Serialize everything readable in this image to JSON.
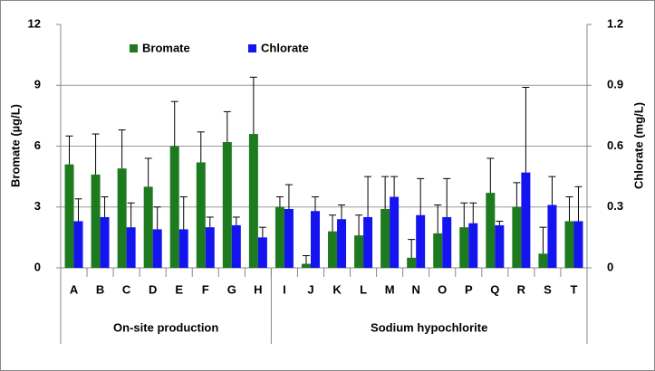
{
  "chart_data": {
    "type": "bar",
    "categories": [
      "A",
      "B",
      "C",
      "D",
      "E",
      "F",
      "G",
      "H",
      "I",
      "J",
      "K",
      "L",
      "M",
      "N",
      "O",
      "P",
      "Q",
      "R",
      "S",
      "T"
    ],
    "groups": [
      {
        "name": "On-site production",
        "categories": [
          "A",
          "B",
          "C",
          "D",
          "E",
          "F",
          "G",
          "H"
        ]
      },
      {
        "name": "Sodium hypochlorite",
        "categories": [
          "I",
          "J",
          "K",
          "L",
          "M",
          "N",
          "O",
          "P",
          "Q",
          "R",
          "S",
          "T"
        ]
      }
    ],
    "series": [
      {
        "name": "Bromate",
        "color": "#1e7a1e",
        "values": [
          5.1,
          4.6,
          4.9,
          4.0,
          6.0,
          5.2,
          6.2,
          6.6,
          3.0,
          0.2,
          1.8,
          1.6,
          2.9,
          0.5,
          1.7,
          2.0,
          3.7,
          3.0,
          0.7,
          2.3
        ],
        "errors": [
          1.4,
          2.0,
          1.9,
          1.4,
          2.2,
          1.5,
          1.5,
          2.8,
          0.5,
          0.4,
          0.8,
          1.0,
          1.6,
          0.9,
          1.4,
          1.2,
          1.7,
          1.2,
          1.3,
          1.2
        ]
      },
      {
        "name": "Chlorate",
        "color": "#1414f0",
        "axis": "y2",
        "values": [
          0.23,
          0.25,
          0.2,
          0.19,
          0.19,
          0.2,
          0.21,
          0.15,
          0.29,
          0.28,
          0.24,
          0.25,
          0.35,
          0.26,
          0.25,
          0.22,
          0.21,
          0.47,
          0.31,
          0.23
        ],
        "errors": [
          0.11,
          0.1,
          0.12,
          0.11,
          0.16,
          0.05,
          0.04,
          0.05,
          0.12,
          0.07,
          0.07,
          0.2,
          0.1,
          0.18,
          0.19,
          0.1,
          0.02,
          0.42,
          0.14,
          0.17
        ]
      }
    ],
    "ylabel": "Bromate (µg/L)",
    "y2label": "Chlorate (mg/L)",
    "ylim": [
      0,
      12
    ],
    "yticks": [
      0,
      3,
      6,
      9,
      12
    ],
    "y2lim": [
      0,
      1.2
    ],
    "y2ticks": [
      0,
      0.3,
      0.6,
      0.9,
      1.2
    ],
    "grid": true
  }
}
